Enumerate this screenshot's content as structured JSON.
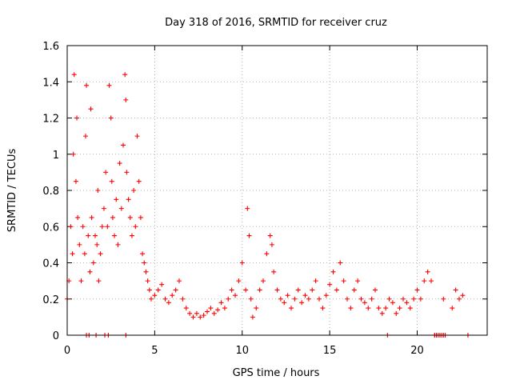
{
  "chart_data": {
    "type": "scatter",
    "title": "Day 318 of 2016, SRMTID for receiver cruz",
    "xlabel": "GPS time / hours",
    "ylabel": "SRMTID / TECUs",
    "xlim": [
      0,
      24
    ],
    "ylim": [
      0,
      1.6
    ],
    "xticks": [
      0,
      5,
      10,
      15,
      20
    ],
    "xtick_labels": [
      "0",
      "5",
      "10",
      "15",
      "20"
    ],
    "yticks": [
      0,
      0.2,
      0.4,
      0.6,
      0.8,
      1,
      1.2,
      1.4,
      1.6
    ],
    "ytick_labels": [
      "0",
      "0.2",
      "0.4",
      "0.6",
      "0.8",
      "1",
      "1.2",
      "1.4",
      "1.6"
    ],
    "grid": true,
    "marker": "+",
    "color": "#ff0000",
    "series": [
      {
        "name": "SRMTID",
        "x": [
          0.0,
          0.1,
          0.2,
          0.3,
          0.35,
          0.4,
          0.5,
          0.55,
          0.6,
          0.7,
          0.8,
          0.9,
          1.0,
          1.05,
          1.1,
          1.2,
          1.3,
          1.35,
          1.4,
          1.5,
          1.6,
          1.7,
          1.75,
          1.8,
          1.9,
          2.0,
          2.1,
          2.2,
          2.3,
          2.4,
          2.5,
          2.55,
          2.6,
          2.7,
          2.8,
          2.9,
          3.0,
          3.1,
          3.2,
          3.3,
          3.35,
          3.4,
          3.5,
          3.6,
          3.7,
          3.8,
          3.9,
          4.0,
          4.1,
          4.2,
          4.3,
          4.4,
          4.5,
          4.6,
          4.7,
          4.8,
          5.0,
          5.2,
          5.4,
          5.6,
          5.8,
          6.0,
          6.2,
          6.4,
          6.6,
          6.8,
          7.0,
          7.2,
          7.4,
          7.6,
          7.8,
          8.0,
          8.2,
          8.4,
          8.6,
          8.8,
          9.0,
          9.2,
          9.4,
          9.6,
          9.8,
          10.0,
          10.2,
          10.3,
          10.4,
          10.5,
          10.6,
          10.8,
          11.0,
          11.2,
          11.4,
          11.6,
          11.7,
          11.8,
          12.0,
          12.2,
          12.4,
          12.6,
          12.8,
          13.0,
          13.2,
          13.4,
          13.6,
          13.8,
          14.0,
          14.2,
          14.4,
          14.6,
          14.8,
          15.0,
          15.2,
          15.4,
          15.6,
          15.8,
          16.0,
          16.2,
          16.4,
          16.6,
          16.8,
          17.0,
          17.2,
          17.4,
          17.6,
          17.8,
          18.0,
          18.2,
          18.4,
          18.6,
          18.8,
          19.0,
          19.2,
          19.4,
          19.6,
          19.8,
          20.0,
          20.2,
          20.4,
          20.6,
          20.8,
          21.0,
          21.5,
          22.0,
          22.2,
          22.4,
          22.6
        ],
        "y": [
          0.2,
          0.3,
          0.6,
          0.45,
          1.0,
          1.44,
          0.85,
          1.2,
          0.65,
          0.5,
          0.3,
          0.6,
          0.45,
          1.1,
          1.38,
          0.55,
          0.35,
          1.25,
          0.65,
          0.4,
          0.55,
          0.5,
          0.8,
          0.3,
          0.45,
          0.6,
          0.7,
          0.9,
          0.6,
          1.38,
          1.2,
          0.85,
          0.65,
          0.55,
          0.75,
          0.5,
          0.95,
          0.7,
          1.05,
          1.44,
          1.3,
          0.9,
          0.75,
          0.65,
          0.55,
          0.8,
          0.6,
          1.1,
          0.85,
          0.65,
          0.45,
          0.4,
          0.35,
          0.3,
          0.25,
          0.2,
          0.22,
          0.25,
          0.28,
          0.2,
          0.18,
          0.22,
          0.25,
          0.3,
          0.2,
          0.15,
          0.12,
          0.1,
          0.12,
          0.1,
          0.11,
          0.13,
          0.15,
          0.12,
          0.14,
          0.18,
          0.15,
          0.2,
          0.25,
          0.22,
          0.3,
          0.4,
          0.25,
          0.7,
          0.55,
          0.2,
          0.1,
          0.15,
          0.25,
          0.3,
          0.45,
          0.55,
          0.5,
          0.35,
          0.25,
          0.2,
          0.18,
          0.22,
          0.15,
          0.2,
          0.25,
          0.18,
          0.22,
          0.2,
          0.25,
          0.3,
          0.2,
          0.15,
          0.22,
          0.28,
          0.35,
          0.25,
          0.4,
          0.3,
          0.2,
          0.15,
          0.25,
          0.3,
          0.2,
          0.18,
          0.15,
          0.2,
          0.25,
          0.15,
          0.12,
          0.15,
          0.2,
          0.18,
          0.12,
          0.15,
          0.2,
          0.18,
          0.15,
          0.2,
          0.25,
          0.2,
          0.3,
          0.35,
          0.3,
          0.0,
          0.2,
          0.15,
          0.25,
          0.2,
          0.22
        ],
        "zero_x": [
          1.1,
          1.25,
          1.65,
          2.15,
          2.35,
          3.35,
          18.3,
          21.0,
          21.1,
          21.2,
          21.3,
          21.4,
          21.5,
          21.6,
          22.9
        ]
      }
    ]
  }
}
